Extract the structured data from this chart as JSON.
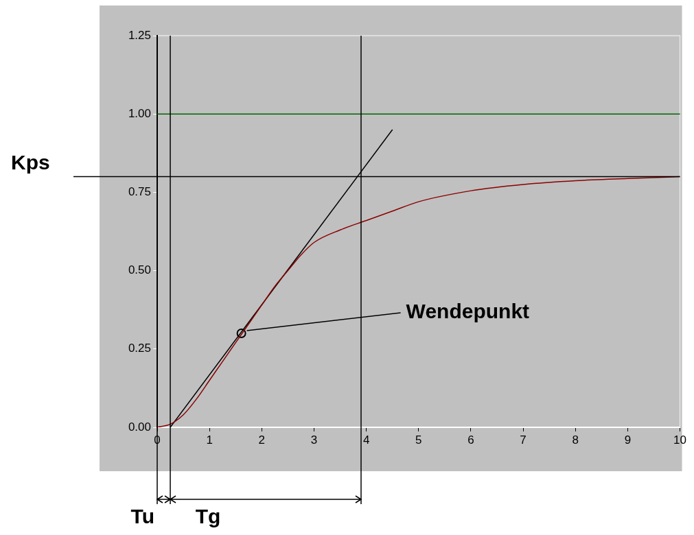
{
  "chart_data": {
    "type": "line",
    "xlim": [
      0,
      10
    ],
    "xticks": [
      0,
      1,
      2,
      3,
      4,
      5,
      6,
      7,
      8,
      9,
      10
    ],
    "ylim": [
      0,
      1.25
    ],
    "yticks": [
      {
        "value": 0,
        "label": "0.00"
      },
      {
        "value": 0.25,
        "label": "0.25"
      },
      {
        "value": 0.5,
        "label": "0.50"
      },
      {
        "value": 0.75,
        "label": "0.75"
      },
      {
        "value": 1,
        "label": "1.00"
      },
      {
        "value": 1.25,
        "label": "1.25"
      }
    ],
    "series": [
      {
        "color": "#8b0000",
        "x": [
          0,
          0.25,
          0.5,
          0.75,
          1,
          1.25,
          1.5,
          1.75,
          2,
          2.25,
          2.5,
          2.75,
          3,
          3.5,
          4,
          4.5,
          5,
          6,
          7,
          8,
          9,
          10
        ],
        "values": [
          0,
          0.01,
          0.04,
          0.09,
          0.15,
          0.21,
          0.27,
          0.33,
          0.39,
          0.45,
          0.5,
          0.55,
          0.59,
          0.63,
          0.66,
          0.69,
          0.72,
          0.755,
          0.775,
          0.787,
          0.794,
          0.8
        ]
      },
      {
        "color": "#000000",
        "x": [
          0.25,
          4.5
        ],
        "values": [
          0,
          0.95
        ]
      },
      {
        "type": "scatter",
        "color": "#000000",
        "marker": "circle",
        "x": [
          1.61
        ],
        "values": [
          0.3
        ]
      }
    ],
    "ref_lines": [
      {
        "axis": "y",
        "value": 1,
        "color": "#006400"
      },
      {
        "axis": "y",
        "value": 0.8,
        "label": "Kps",
        "color": "#000000"
      },
      {
        "axis": "x",
        "value": 0.25,
        "color": "#000000"
      },
      {
        "axis": "x",
        "value": 3.9,
        "color": "#000000"
      }
    ],
    "annotations": [
      {
        "text": "Wendepunkt",
        "x": 1.61,
        "y": 0.3
      },
      "Tu",
      "Tg"
    ],
    "grid": false,
    "legend": false
  }
}
